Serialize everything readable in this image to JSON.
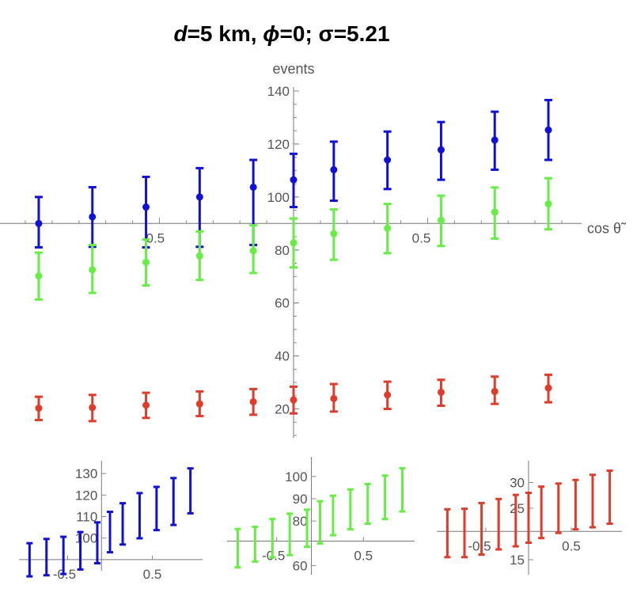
{
  "header": {
    "title_d_var": "d",
    "title_d_val": "=5 km, ",
    "title_phi_var": "ϕ",
    "title_phi_val": "=0; σ=5.21"
  },
  "chart_data": [
    {
      "type": "scatter",
      "name": "main",
      "ylabel": "events",
      "xlabel": "cos θ̃",
      "xlim": [
        -1,
        1
      ],
      "ylim": [
        10,
        140
      ],
      "x_crossing_y": 90,
      "x_ticks": [
        {
          "v": -0.5,
          "t": "-0.5"
        },
        {
          "v": 0.5,
          "t": "0.5"
        }
      ],
      "y_ticks": [
        {
          "v": 20,
          "t": "20"
        },
        {
          "v": 40,
          "t": "40"
        },
        {
          "v": 60,
          "t": "60"
        },
        {
          "v": 80,
          "t": "80"
        },
        {
          "v": 100,
          "t": "100"
        },
        {
          "v": 120,
          "t": "120"
        },
        {
          "v": 140,
          "t": "140"
        }
      ],
      "x": [
        -0.95,
        -0.75,
        -0.55,
        -0.35,
        -0.15,
        0.0,
        0.15,
        0.35,
        0.55,
        0.75,
        0.95
      ],
      "series": [
        {
          "color": "#1010d8",
          "values": [
            90.0,
            92.5,
            96.2,
            100.0,
            103.7,
            106.5,
            110.3,
            114.0,
            117.8,
            121.5,
            125.3
          ],
          "err_low": [
            81.0,
            81.2,
            81.0,
            81.2,
            81.9,
            96.2,
            98.6,
            103.0,
            106.5,
            110.3,
            114.0
          ],
          "err_high": [
            100.0,
            103.7,
            107.6,
            110.9,
            114.0,
            116.3,
            120.9,
            124.7,
            128.3,
            132.2,
            136.6
          ]
        },
        {
          "color": "#66ee44",
          "values": [
            70.2,
            72.5,
            75.4,
            77.8,
            79.7,
            82.7,
            86.2,
            88.2,
            91.2,
            94.3,
            97.4
          ],
          "err_low": [
            61.3,
            63.8,
            66.6,
            68.7,
            71.3,
            73.4,
            76.3,
            78.8,
            81.5,
            84.3,
            87.8
          ],
          "err_high": [
            79.0,
            81.9,
            83.9,
            87.0,
            89.3,
            91.9,
            95.3,
            97.4,
            100.5,
            103.6,
            107.1
          ]
        },
        {
          "color": "#e03c2c",
          "values": [
            20.3,
            20.5,
            21.4,
            21.9,
            22.7,
            23.4,
            23.9,
            25.3,
            26.3,
            26.6,
            27.9
          ],
          "err_low": [
            15.8,
            15.4,
            16.6,
            17.3,
            17.8,
            18.3,
            19.0,
            20.0,
            21.2,
            21.9,
            22.5
          ],
          "err_high": [
            24.6,
            25.3,
            26.1,
            26.6,
            27.5,
            28.4,
            29.4,
            30.3,
            31.0,
            32.2,
            32.9
          ]
        }
      ]
    },
    {
      "type": "scatter",
      "name": "inset-blue",
      "xlim": [
        -1,
        1
      ],
      "ylim": [
        87,
        133
      ],
      "x_crossing_y": 90,
      "y_axis_x": -0.1,
      "x_ticks": [
        {
          "v": -0.5,
          "t": "-0.5"
        },
        {
          "v": 0.5,
          "t": "0.5"
        }
      ],
      "y_ticks": [
        {
          "v": 100,
          "t": "100"
        },
        {
          "v": 110,
          "t": "110"
        },
        {
          "v": 120,
          "t": "120"
        },
        {
          "v": 130,
          "t": "130"
        }
      ],
      "x": [
        -0.95,
        -0.75,
        -0.55,
        -0.35,
        -0.15,
        0.0,
        0.15,
        0.35,
        0.55,
        0.75,
        0.95
      ],
      "series": [
        {
          "color": "#1010d8",
          "values": [
            90.0,
            90.2,
            91.3,
            93.5,
            98.3,
            102.8,
            106.7,
            109.8,
            113.5,
            116.7,
            121.6
          ],
          "err_low": [
            82.2,
            82.7,
            83.3,
            85.4,
            88.3,
            93.4,
            97.0,
            99.9,
            103.7,
            106.1,
            111.5
          ],
          "err_high": [
            97.6,
            99.6,
            100.6,
            102.8,
            107.3,
            112.2,
            116.2,
            120.9,
            123.8,
            127.9,
            132.4
          ]
        }
      ]
    },
    {
      "type": "scatter",
      "name": "inset-green",
      "xlim": [
        -1,
        1
      ],
      "ylim": [
        58,
        106
      ],
      "x_crossing_y": 71,
      "y_axis_x": -0.1,
      "x_ticks": [
        {
          "v": -0.5,
          "t": "-0.5"
        },
        {
          "v": 0.5,
          "t": "0.5"
        }
      ],
      "y_ticks": [
        {
          "v": 60,
          "t": "60"
        },
        {
          "v": 80,
          "t": "80"
        },
        {
          "v": 90,
          "t": "90"
        },
        {
          "v": 100,
          "t": "100"
        }
      ],
      "x": [
        -0.95,
        -0.75,
        -0.55,
        -0.35,
        -0.15,
        0.0,
        0.15,
        0.35,
        0.55,
        0.75,
        0.95
      ],
      "series": [
        {
          "color": "#66ee44",
          "values": [
            67.9,
            69.9,
            73.0,
            73.9,
            77.1,
            79.0,
            82.7,
            84.1,
            87.5,
            89.5,
            94.0
          ],
          "err_low": [
            59.2,
            61.8,
            63.7,
            64.7,
            68.4,
            69.9,
            73.6,
            76.3,
            78.8,
            80.9,
            84.3
          ],
          "err_high": [
            76.4,
            77.4,
            80.9,
            83.3,
            85.1,
            88.9,
            91.4,
            94.2,
            96.6,
            100.4,
            103.7
          ]
        }
      ]
    },
    {
      "type": "scatter",
      "name": "inset-red",
      "xlim": [
        -1,
        1
      ],
      "ylim": [
        13,
        33
      ],
      "x_crossing_y": 20.5,
      "y_axis_x": 0.0,
      "x_ticks": [
        {
          "v": -0.5,
          "t": "-0.5"
        },
        {
          "v": 0.5,
          "t": "0.5"
        }
      ],
      "y_ticks": [
        {
          "v": 15,
          "t": "15"
        },
        {
          "v": 25,
          "t": "25"
        },
        {
          "v": 30,
          "t": "30"
        }
      ],
      "x": [
        -0.95,
        -0.75,
        -0.55,
        -0.35,
        -0.15,
        0.0,
        0.15,
        0.35,
        0.55,
        0.75,
        0.95
      ],
      "series": [
        {
          "color": "#e03c2c",
          "values": [
            20.1,
            20.5,
            21.1,
            21.9,
            22.6,
            23.0,
            24.0,
            24.8,
            25.8,
            26.3,
            27.5
          ],
          "err_low": [
            15.5,
            15.5,
            16.0,
            17.0,
            17.6,
            18.3,
            19.2,
            20.2,
            20.9,
            21.3,
            22.0
          ],
          "err_high": [
            24.8,
            24.9,
            26.0,
            26.8,
            27.6,
            28.0,
            29.2,
            29.8,
            30.5,
            31.5,
            32.3
          ]
        }
      ]
    }
  ]
}
